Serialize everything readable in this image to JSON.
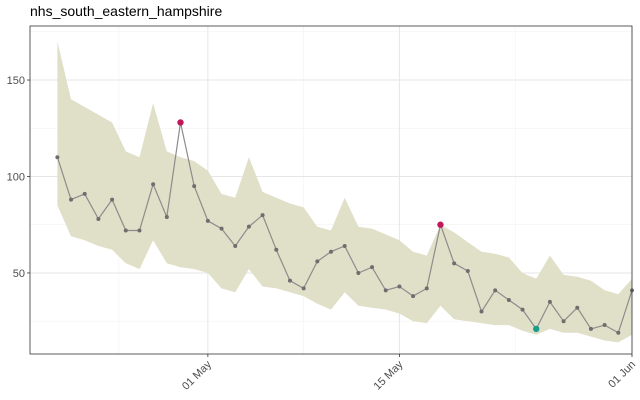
{
  "chart_data": {
    "type": "line",
    "title": "nhs_south_eastern_hampshire",
    "xlabel": "",
    "ylabel": "",
    "x_start": "2020-04-20",
    "x_ticks": [
      {
        "date": "2020-05-01",
        "label": "01 May"
      },
      {
        "date": "2020-05-15",
        "label": "15 May"
      },
      {
        "date": "2020-06-01",
        "label": "01 Jun"
      }
    ],
    "y_ticks": [
      50,
      100,
      150
    ],
    "xlim": [
      "2020-04-18",
      "2020-06-01"
    ],
    "ylim": [
      8,
      178
    ],
    "grid": true,
    "colors": {
      "band": "#e0dfc8",
      "line": "#8c8c8c",
      "point": "#6e6e6e",
      "high": "#c2185b",
      "low": "#1a9c8c"
    },
    "series": [
      {
        "dates": [
          "2020-04-20",
          "2020-04-21",
          "2020-04-22",
          "2020-04-23",
          "2020-04-24",
          "2020-04-25",
          "2020-04-26",
          "2020-04-27",
          "2020-04-28",
          "2020-04-29",
          "2020-04-30",
          "2020-05-01",
          "2020-05-02",
          "2020-05-03",
          "2020-05-04",
          "2020-05-05",
          "2020-05-06",
          "2020-05-07",
          "2020-05-08",
          "2020-05-09",
          "2020-05-10",
          "2020-05-11",
          "2020-05-12",
          "2020-05-13",
          "2020-05-14",
          "2020-05-15",
          "2020-05-16",
          "2020-05-17",
          "2020-05-18",
          "2020-05-19",
          "2020-05-20",
          "2020-05-21",
          "2020-05-22",
          "2020-05-23",
          "2020-05-24",
          "2020-05-25",
          "2020-05-26",
          "2020-05-27",
          "2020-05-28",
          "2020-05-29",
          "2020-05-30",
          "2020-05-31",
          "2020-06-01"
        ],
        "values": [
          110,
          88,
          91,
          78,
          88,
          72,
          72,
          96,
          79,
          128,
          95,
          77,
          73,
          64,
          74,
          80,
          62,
          46,
          42,
          56,
          61,
          64,
          50,
          53,
          41,
          43,
          38,
          42,
          75,
          55,
          51,
          30,
          41,
          36,
          31,
          21,
          35,
          25,
          32,
          21,
          23,
          19,
          41
        ],
        "upper": [
          170,
          140,
          136,
          132,
          128,
          113,
          110,
          138,
          113,
          110,
          108,
          103,
          91,
          89,
          110,
          92,
          89,
          86,
          84,
          74,
          72,
          89,
          74,
          73,
          70,
          67,
          61,
          59,
          75,
          71,
          66,
          61,
          60,
          58,
          50,
          47,
          59,
          49,
          48,
          46,
          41,
          39,
          47
        ],
        "lower": [
          85,
          69,
          67,
          64,
          62,
          55,
          52,
          67,
          55,
          53,
          52,
          50,
          42,
          40,
          52,
          43,
          42,
          40,
          38,
          34,
          31,
          40,
          33,
          32,
          31,
          29,
          25,
          24,
          33,
          26,
          25,
          24,
          23,
          23,
          20,
          18,
          21,
          19,
          19,
          17,
          15,
          14,
          18
        ]
      }
    ],
    "outliers": {
      "high": [
        "2020-04-29",
        "2020-05-18"
      ],
      "low": [
        "2020-05-25"
      ]
    }
  }
}
